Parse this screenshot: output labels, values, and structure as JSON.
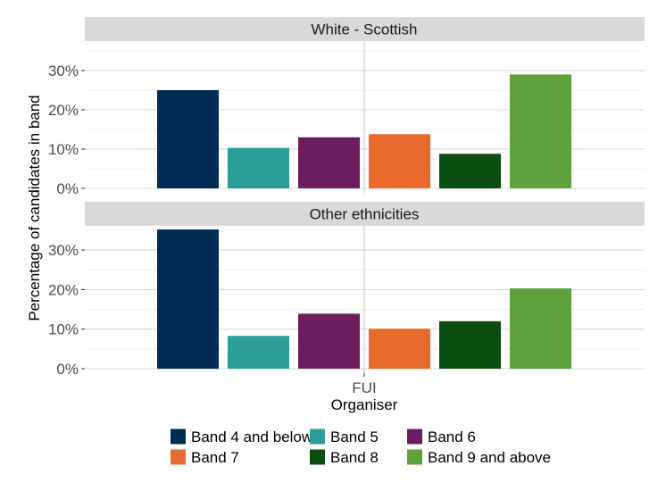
{
  "chart_data": {
    "type": "bar",
    "x_category": "FUI",
    "xlabel": "Organiser",
    "ylabel": "Percentage of candidates in band",
    "ylim": [
      0,
      37
    ],
    "y_ticks": [
      "0%",
      "10%",
      "20%",
      "30%"
    ],
    "y_tick_values": [
      0,
      10,
      20,
      30
    ],
    "grid": true,
    "legend_position": "bottom",
    "series": [
      {
        "name": "Band 4 and below",
        "color": "#002d54"
      },
      {
        "name": "Band 5",
        "color": "#2a9e97"
      },
      {
        "name": "Band 6",
        "color": "#6c1d5f"
      },
      {
        "name": "Band 7",
        "color": "#e86a2c"
      },
      {
        "name": "Band 8",
        "color": "#0a4d10"
      },
      {
        "name": "Band 9 and above",
        "color": "#5ea13d"
      }
    ],
    "panels": [
      {
        "title": "White - Scottish",
        "values": [
          25,
          10.3,
          13,
          13.8,
          8.8,
          29
        ]
      },
      {
        "title": "Other ethnicities",
        "values": [
          35.2,
          8.3,
          13.9,
          10.1,
          12,
          20.3
        ]
      }
    ]
  }
}
